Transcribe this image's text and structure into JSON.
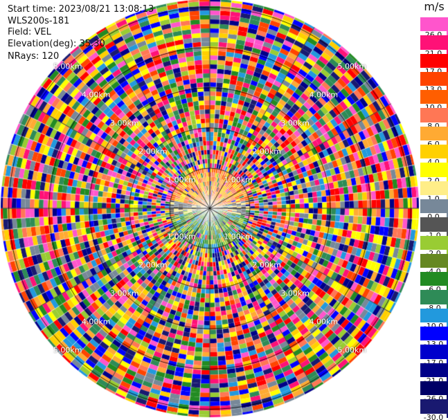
{
  "info": {
    "start_time": "Start time: 2023/08/21 13:08:13",
    "instrument": "WLS200s-181",
    "field": "Field: VEL",
    "elevation": "Elevation(deg): 35.30",
    "nrays": "NRays: 120"
  },
  "colorbar": {
    "unit": "m/s",
    "bins": [
      {
        "color": "#ff55cc",
        "label": "26.0"
      },
      {
        "color": "#ff1177",
        "label": "21.0"
      },
      {
        "color": "#ff0000",
        "label": "17.0"
      },
      {
        "color": "#ff4400",
        "label": "13.0"
      },
      {
        "color": "#ff5e00",
        "label": "10.0"
      },
      {
        "color": "#ff7755",
        "label": "8.0"
      },
      {
        "color": "#ffaa33",
        "label": "6.0"
      },
      {
        "color": "#ffd000",
        "label": "4.0"
      },
      {
        "color": "#ffff00",
        "label": "2.0"
      },
      {
        "color": "#ffee88",
        "label": "1.0"
      },
      {
        "color": "#778899",
        "label": "0.0"
      },
      {
        "color": "#555555",
        "label": "-1.0"
      },
      {
        "color": "#99cc33",
        "label": "-2.0"
      },
      {
        "color": "#668822",
        "label": "-4.0"
      },
      {
        "color": "#228b22",
        "label": "-6.0"
      },
      {
        "color": "#2e8b57",
        "label": "-8.0"
      },
      {
        "color": "#2299dd",
        "label": "-10.0"
      },
      {
        "color": "#0000ff",
        "label": "-13.0"
      },
      {
        "color": "#0000cc",
        "label": "-17.0"
      },
      {
        "color": "#000088",
        "label": "-21.0"
      },
      {
        "color": "#000066",
        "label": "-26.0"
      },
      {
        "color": "#191970",
        "label": "-30.0"
      }
    ]
  },
  "range_rings": [
    {
      "label": "1.00km",
      "km": 1
    },
    {
      "label": "2.00km",
      "km": 2
    },
    {
      "label": "3.00km",
      "km": 3
    },
    {
      "label": "4.00km",
      "km": 4
    },
    {
      "label": "5.00km",
      "km": 5
    }
  ],
  "scan": {
    "nrays": 120,
    "max_range_km": 5.2
  }
}
